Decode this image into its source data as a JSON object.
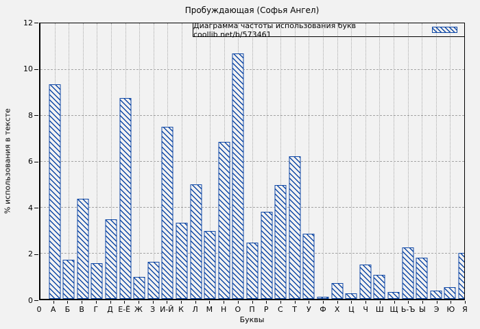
{
  "title": "Пробуждающая (Софья Ангел)",
  "legend": {
    "label": "Диаграмма частоты использования букв coollib.net/b/573461",
    "swatch": "hatched-bar-sample"
  },
  "axes": {
    "x_label": "Буквы",
    "y_label": "% использования в тексте",
    "y_ticks": [
      0,
      2,
      4,
      6,
      8,
      10,
      12
    ],
    "origin_label": "0"
  },
  "colors": {
    "bar": "#0e47a5",
    "background": "#f2f2f2",
    "grid": "#a3a3a3",
    "axis": "#000000"
  },
  "chart_data": {
    "type": "bar",
    "title": "Пробуждающая (Софья Ангел)",
    "xlabel": "Буквы",
    "ylabel": "% использования в тексте",
    "ylim": [
      0,
      12
    ],
    "grid": true,
    "legend": "Диаграмма частоты использования букв coollib.net/b/573461",
    "legend_position": "top-right",
    "bar_style": "diagonal-hatch-outline",
    "categories": [
      "А",
      "Б",
      "В",
      "Г",
      "Д",
      "Е-Ё",
      "Ж",
      "З",
      "И-Й",
      "К",
      "Л",
      "М",
      "Н",
      "О",
      "П",
      "Р",
      "С",
      "Т",
      "У",
      "Ф",
      "Х",
      "Ц",
      "Ч",
      "Ш",
      "Щ",
      "Ь-Ъ",
      "Ы",
      "Э",
      "Ю",
      "Я"
    ],
    "values": [
      9.35,
      1.7,
      4.35,
      1.55,
      3.45,
      8.75,
      0.95,
      1.6,
      7.5,
      3.3,
      5.0,
      2.95,
      6.85,
      10.7,
      2.45,
      3.8,
      4.95,
      6.2,
      2.85,
      0.08,
      0.7,
      0.25,
      1.5,
      1.05,
      0.3,
      2.25,
      1.8,
      0.35,
      0.5,
      2.0
    ]
  }
}
